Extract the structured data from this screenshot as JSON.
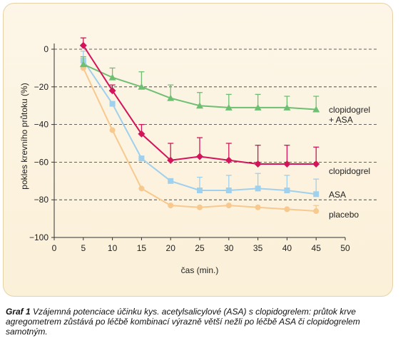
{
  "chart_data": {
    "type": "line",
    "xlabel": "čas (min.)",
    "ylabel": "pokles krevního průtoku (%)",
    "xlim": [
      0,
      50
    ],
    "ylim": [
      -100,
      0
    ],
    "x_ticks": [
      0,
      5,
      10,
      15,
      20,
      25,
      30,
      35,
      40,
      45,
      50
    ],
    "y_ticks": [
      0,
      -20,
      -40,
      -60,
      -80,
      -100
    ],
    "y_tick_labels": [
      "0",
      "−20",
      "−40",
      "−60",
      "−80",
      "−100"
    ],
    "grid": "dashed horizontal at y ticks",
    "series": [
      {
        "name": "clopidogrel + ASA",
        "name_lines": [
          "clopidogrel",
          "+ ASA"
        ],
        "color": "#6fbf73",
        "marker": "triangle",
        "x": [
          5,
          10,
          15,
          20,
          25,
          30,
          35,
          40,
          45
        ],
        "y": [
          -8,
          -15,
          -20,
          -26,
          -30,
          -31,
          -31,
          -31,
          -32
        ],
        "err_upper": [
          4,
          5,
          8,
          7,
          7,
          7,
          7,
          6,
          7
        ]
      },
      {
        "name": "clopidogrel",
        "name_lines": [
          "clopidogrel"
        ],
        "color": "#d4145a",
        "marker": "diamond",
        "x": [
          5,
          10,
          15,
          20,
          25,
          30,
          35,
          40,
          45
        ],
        "y": [
          2,
          -22,
          -45,
          -59,
          -57,
          -59,
          -61,
          -61,
          -61
        ],
        "err_upper": [
          4,
          3,
          5,
          9,
          10,
          9,
          10,
          10,
          9
        ]
      },
      {
        "name": "ASA",
        "name_lines": [
          "ASA"
        ],
        "color": "#9fd0ee",
        "marker": "square",
        "x": [
          5,
          10,
          15,
          20,
          25,
          30,
          35,
          40,
          45
        ],
        "y": [
          -6,
          -29,
          -58,
          -70,
          -75,
          -75,
          -74,
          -75,
          -77
        ],
        "err_upper": [
          5,
          0,
          0,
          0,
          7,
          8,
          8,
          8,
          8
        ]
      },
      {
        "name": "placebo",
        "name_lines": [
          "placebo"
        ],
        "color": "#f7c98e",
        "marker": "circle",
        "x": [
          5,
          10,
          15,
          20,
          25,
          30,
          35,
          40,
          45
        ],
        "y": [
          -10,
          -43,
          -74,
          -83,
          -84,
          -83,
          -84,
          -85,
          -86
        ],
        "err_upper": [
          0,
          0,
          0,
          0,
          0,
          0,
          0,
          0,
          3
        ]
      }
    ]
  },
  "caption": {
    "label": "Graf 1",
    "text": "Vzájemná potenciace účinku kys. acetylsalicylové (ASA) s clopidogrelem: průtok krve agregometrem zůstává po léčbě kombinací výrazně větší nežli po léčbě ASA či clopidogrelem samotným."
  },
  "colors": {
    "panel_background": "#fcf3e0",
    "panel_border": "#e6d2a6",
    "axis": "#333333",
    "grid": "#333333"
  }
}
